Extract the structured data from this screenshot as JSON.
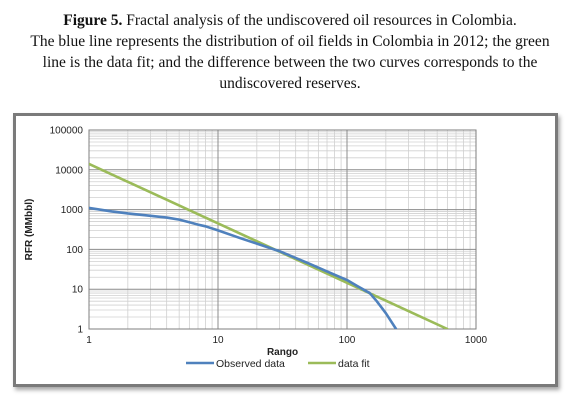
{
  "caption": {
    "label": "Figure 5.",
    "line1": " Fractal analysis of the undiscovered oil resources in Colombia.",
    "line2": "The blue line represents the distribution of oil fields in Colombia in 2012; the green",
    "line3": "line is the data fit; and the difference between the two curves corresponds to the",
    "line4": "undiscovered reserves."
  },
  "chart_data": {
    "type": "line",
    "xlabel": "Rango",
    "ylabel": "RFR (MMbbl)",
    "x_scale": "log",
    "y_scale": "log",
    "xlim": [
      1,
      1000
    ],
    "ylim": [
      1,
      100000
    ],
    "x_ticks": [
      "1",
      "10",
      "100",
      "1000"
    ],
    "y_ticks": [
      "1",
      "10",
      "100",
      "1000",
      "10000",
      "100000"
    ],
    "grid": true,
    "legend_position": "bottom",
    "series": [
      {
        "name": "Observed data",
        "color": "#4f81bd",
        "x": [
          1,
          1.5,
          2,
          3,
          4,
          5,
          6,
          7,
          8,
          10,
          15,
          20,
          30,
          50,
          70,
          100,
          120,
          150,
          170,
          200,
          240
        ],
        "y": [
          1100,
          900,
          800,
          700,
          630,
          560,
          480,
          420,
          380,
          300,
          190,
          140,
          90,
          45,
          28,
          17,
          12,
          8,
          5,
          2.5,
          1
        ]
      },
      {
        "name": "data fit",
        "color": "#9bbb59",
        "x": [
          1,
          600
        ],
        "y": [
          14000,
          1
        ]
      }
    ]
  }
}
